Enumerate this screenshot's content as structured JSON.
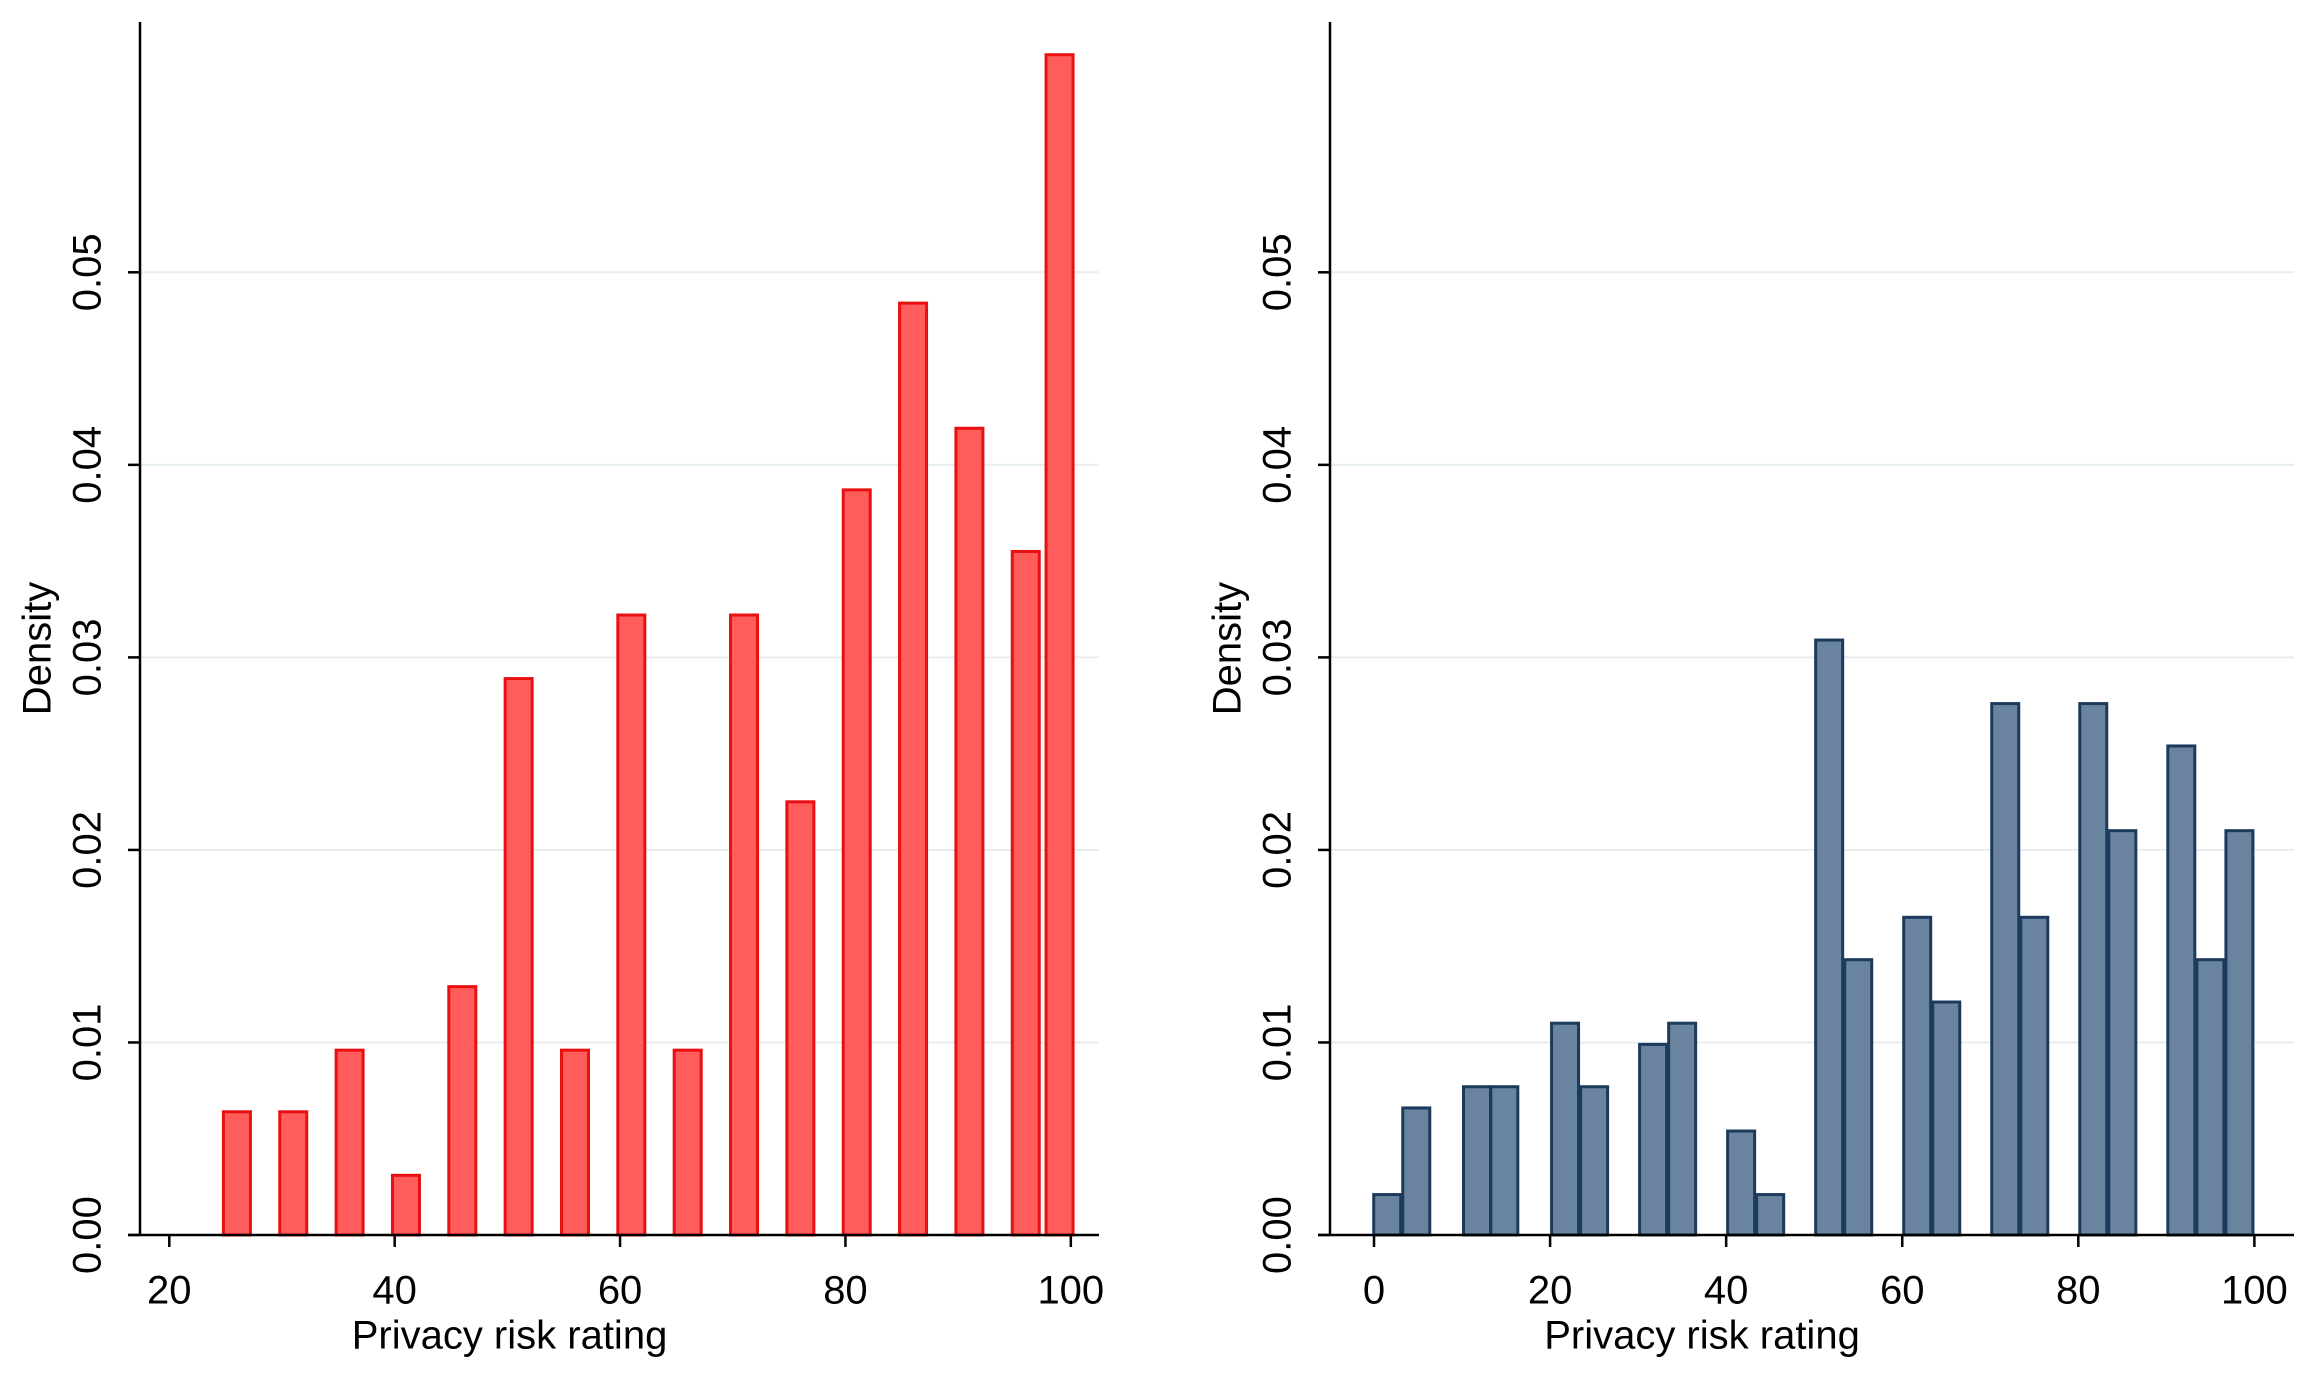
{
  "chart_data": [
    {
      "type": "bar",
      "xlabel": "Privacy risk rating",
      "ylabel": "Density",
      "x": [
        26,
        31,
        36,
        41,
        46,
        51,
        56,
        61,
        66,
        71,
        76,
        81,
        86,
        91,
        96,
        99
      ],
      "values": [
        0.0064,
        0.0064,
        0.0096,
        0.0031,
        0.0129,
        0.0289,
        0.0096,
        0.0322,
        0.0096,
        0.0322,
        0.0225,
        0.0387,
        0.0484,
        0.0419,
        0.0355,
        0.0613
      ],
      "color": "#ff5c5c",
      "edgecolor": "#e81010",
      "xlim": [
        17.4,
        102.5
      ],
      "ylim": [
        0,
        0.063
      ],
      "xticks": [
        20,
        40,
        60,
        80,
        100
      ],
      "yticks": [
        {
          "value": 0,
          "label": "0.00"
        },
        0.01,
        0.02,
        0.03,
        0.04,
        0.05
      ],
      "grid": true
    },
    {
      "type": "bar",
      "xlabel": "Privacy risk rating",
      "ylabel": "Density",
      "x": [
        1.5,
        4.8,
        11.7,
        14.8,
        21.7,
        25,
        31.7,
        35,
        41.7,
        45,
        51.7,
        55,
        61.7,
        65,
        71.7,
        75,
        81.7,
        85,
        91.7,
        95,
        98.3
      ],
      "values": [
        0.0021,
        0.0066,
        0.0077,
        0.0077,
        0.011,
        0.0077,
        0.0099,
        0.011,
        0.0054,
        0.0021,
        0.0309,
        0.0143,
        0.0165,
        0.0121,
        0.0276,
        0.0165,
        0.0276,
        0.021,
        0.0254,
        0.0143,
        0.021
      ],
      "color": "#6a84a0",
      "edgecolor": "#1c3a5c",
      "xlim": [
        -5,
        104.5
      ],
      "ylim": [
        0,
        0.063
      ],
      "xticks": [
        0,
        20,
        40,
        60,
        80,
        100
      ],
      "yticks": [
        {
          "value": 0,
          "label": "0.00"
        },
        0.01,
        0.02,
        0.03,
        0.04,
        0.05
      ],
      "grid": true
    }
  ]
}
